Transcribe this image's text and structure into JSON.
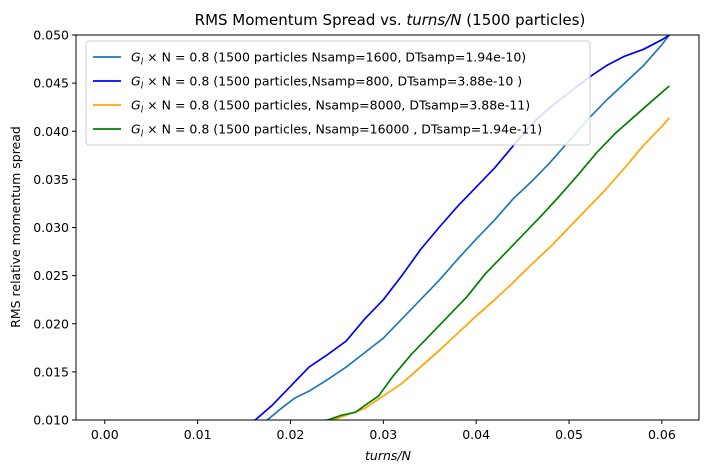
{
  "chart_data": {
    "type": "line",
    "title": "RMS Momentum Spread vs. turns/N (1500 particles)",
    "title_main": "RMS Momentum Spread vs. ",
    "title_italic": "turns/N",
    "title_tail": " (1500 particles)",
    "xlabel": "turns/N",
    "ylabel": "RMS relative momentum spread",
    "xlim": [
      -0.0031,
      0.064
    ],
    "ylim": [
      0.01,
      0.05
    ],
    "x_ticks": [
      "0.00",
      "0.01",
      "0.02",
      "0.03",
      "0.04",
      "0.05",
      "0.06"
    ],
    "y_ticks": [
      "0.010",
      "0.015",
      "0.020",
      "0.025",
      "0.030",
      "0.035",
      "0.040",
      "0.045",
      "0.050"
    ],
    "grid": false,
    "legend_position": "top-left",
    "series": [
      {
        "name": "G_l × N = 0.8  (1500 particles Nsamp=1600, DTsamp=1.94e-10)",
        "legend_math": "G",
        "legend_sub": "l",
        "legend_rest": " × N = 0.8  (1500 particles Nsamp=1600, DTsamp=1.94e-10)",
        "color": "#1f77b4",
        "x": [
          0.0,
          0.0175,
          0.019,
          0.0205,
          0.022,
          0.024,
          0.026,
          0.028,
          0.03,
          0.032,
          0.034,
          0.036,
          0.038,
          0.04,
          0.042,
          0.044,
          0.046,
          0.048,
          0.05,
          0.052,
          0.054,
          0.056,
          0.058,
          0.06,
          0.0608
        ],
        "y": [
          0.0075,
          0.01,
          0.0112,
          0.0123,
          0.013,
          0.0142,
          0.0155,
          0.017,
          0.0185,
          0.0205,
          0.0225,
          0.0245,
          0.0267,
          0.0288,
          0.0308,
          0.033,
          0.0348,
          0.0368,
          0.039,
          0.0412,
          0.0432,
          0.045,
          0.0468,
          0.049,
          0.05
        ]
      },
      {
        "name": "G_l × N = 0.8 (1500 particles,Nsamp=800, DTsamp=3.88e-10 )",
        "legend_math": "G",
        "legend_sub": "l",
        "legend_rest": " × N = 0.8 (1500 particles,Nsamp=800, DTsamp=3.88e-10 )",
        "color": "#0000ff",
        "x": [
          0.0,
          0.0162,
          0.018,
          0.02,
          0.022,
          0.024,
          0.026,
          0.028,
          0.03,
          0.032,
          0.034,
          0.036,
          0.038,
          0.04,
          0.042,
          0.044,
          0.046,
          0.048,
          0.05,
          0.052,
          0.054,
          0.056,
          0.058,
          0.06,
          0.0608
        ],
        "y": [
          0.008,
          0.01,
          0.0115,
          0.0135,
          0.0155,
          0.0168,
          0.0182,
          0.0205,
          0.0225,
          0.025,
          0.0277,
          0.03,
          0.0322,
          0.0342,
          0.0362,
          0.0385,
          0.0408,
          0.0425,
          0.044,
          0.0455,
          0.0468,
          0.0478,
          0.0485,
          0.0495,
          0.05
        ]
      },
      {
        "name": "G_l × N = 0.8 (1500 particles, Nsamp=8000, DTsamp=3.88e-11)",
        "legend_math": "G",
        "legend_sub": "l",
        "legend_rest": " × N = 0.8 (1500 particles, Nsamp=8000, DTsamp=3.88e-11)",
        "color": "#ffa500",
        "x": [
          0.0,
          0.0245,
          0.026,
          0.028,
          0.03,
          0.032,
          0.034,
          0.036,
          0.038,
          0.04,
          0.042,
          0.044,
          0.046,
          0.048,
          0.05,
          0.052,
          0.054,
          0.056,
          0.058,
          0.06,
          0.0608
        ],
        "y": [
          0.008,
          0.01,
          0.0105,
          0.0112,
          0.0125,
          0.0138,
          0.0155,
          0.0172,
          0.019,
          0.0208,
          0.0225,
          0.0243,
          0.0262,
          0.028,
          0.03,
          0.032,
          0.034,
          0.0362,
          0.0385,
          0.0405,
          0.0414
        ]
      },
      {
        "name": "G_l × N = 0.8 (1500 particles, Nsamp=16000 , DTsamp=1.94e-11)",
        "legend_math": "G",
        "legend_sub": "l",
        "legend_rest": " × N = 0.8 (1500 particles, Nsamp=16000 , DTsamp=1.94e-11)",
        "color": "#008000",
        "x": [
          0.0,
          0.024,
          0.0255,
          0.027,
          0.028,
          0.0295,
          0.031,
          0.033,
          0.035,
          0.037,
          0.039,
          0.041,
          0.043,
          0.045,
          0.047,
          0.049,
          0.051,
          0.053,
          0.055,
          0.057,
          0.059,
          0.0608
        ],
        "y": [
          0.008,
          0.01,
          0.0105,
          0.0108,
          0.0115,
          0.0125,
          0.0145,
          0.0168,
          0.0188,
          0.0208,
          0.0228,
          0.0252,
          0.0272,
          0.0292,
          0.0312,
          0.0333,
          0.0355,
          0.0378,
          0.0398,
          0.0415,
          0.0432,
          0.0447
        ]
      }
    ]
  }
}
